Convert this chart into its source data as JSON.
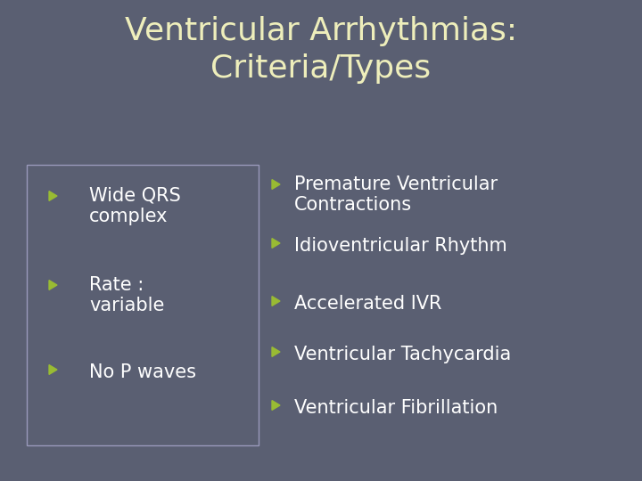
{
  "title": "Ventricular Arrhythmias:\nCriteria/Types",
  "title_color": "#eeeebb",
  "title_fontsize": 26,
  "background_color": "#5a5f72",
  "bullet_color": "#99bb33",
  "text_color": "#ffffff",
  "left_bullets": [
    "Wide QRS\ncomplex",
    "Rate :\nvariable",
    "No P waves"
  ],
  "right_bullets": [
    "Premature Ventricular\nContractions",
    "Idioventricular Rhythm",
    "Accelerated IVR",
    "Ventricular Tachycardia",
    "Ventricular Fibrillation"
  ],
  "box_edge_color": "#9999bb",
  "bullet_fontsize": 15,
  "title_font": "DejaVu Sans",
  "body_font": "DejaVu Sans",
  "figsize": [
    7.2,
    5.4
  ],
  "dpi": 100
}
